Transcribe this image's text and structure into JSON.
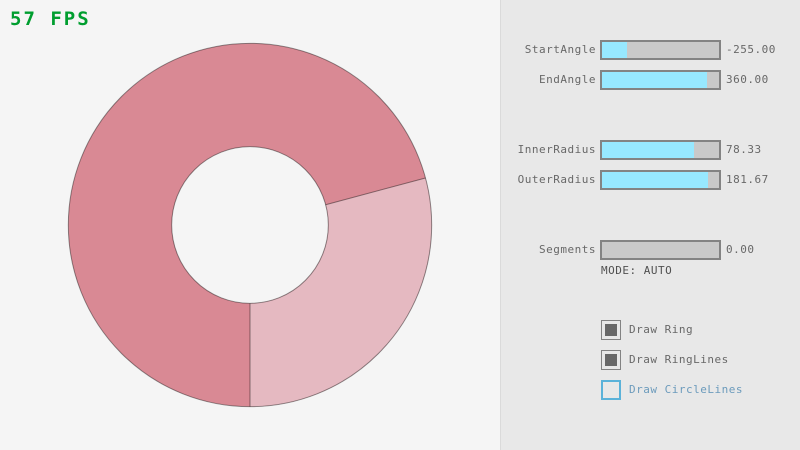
{
  "fps": {
    "text": "57 FPS",
    "color": "#009e2f"
  },
  "ring": {
    "start_angle": -255,
    "end_angle": 360,
    "inner_radius": 78.33,
    "outer_radius": 181.67,
    "segments": 0,
    "color_single_pass": "#e5b9c1",
    "color_overlap": "#d98994",
    "outline_color": "rgba(0,0,0,0.42)",
    "background": "#f5f5f5"
  },
  "panel": {
    "background": "#e8e8e8",
    "divider_color": "#dadada",
    "sliders": [
      {
        "label": "StartAngle",
        "value": "-255.00",
        "fill_pct": 21.7
      },
      {
        "label": "EndAngle",
        "value": "360.00",
        "fill_pct": 90.0
      },
      {
        "label": "InnerRadius",
        "value": "78.33",
        "fill_pct": 78.3
      },
      {
        "label": "OuterRadius",
        "value": "181.67",
        "fill_pct": 90.8
      },
      {
        "label": "Segments",
        "value": "0.00",
        "fill_pct": 0
      }
    ],
    "mode_text": "MODE: AUTO",
    "checkboxes": [
      {
        "label": "Draw Ring",
        "checked": true,
        "focused": false
      },
      {
        "label": "Draw RingLines",
        "checked": true,
        "focused": false
      },
      {
        "label": "Draw CircleLines",
        "checked": false,
        "focused": true
      }
    ]
  },
  "colors": {
    "slider_fill": "#97e8ff",
    "slider_track": "#c9c9c9",
    "control_border": "#838383",
    "text_normal": "#686868",
    "focus_border": "#5bb2d9",
    "focus_text": "#6c9bbc"
  }
}
